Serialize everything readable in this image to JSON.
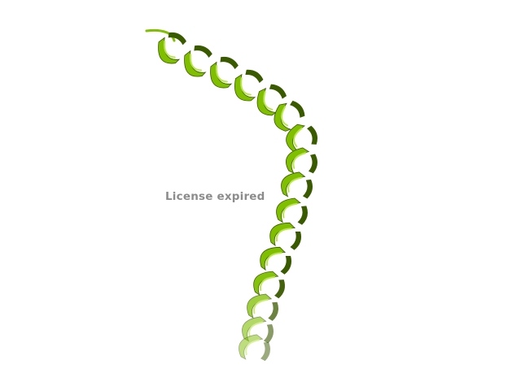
{
  "viewer": {
    "watermark_text": "License expired",
    "background_color": "#ffffff",
    "watermark_color": "#8c8c8c"
  },
  "structure": {
    "representation": "cartoon",
    "secondary_structure": "alpha-helix",
    "color": "#7fbf00",
    "color_shadow": "#3a5a00",
    "color_highlight": "#b9e64a"
  }
}
